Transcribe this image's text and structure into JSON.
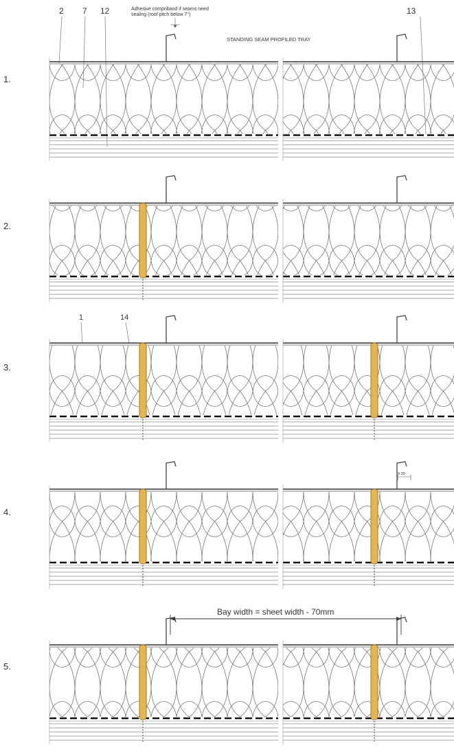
{
  "header": {
    "num_2": "2",
    "num_7": "7",
    "num_12": "12",
    "num_13": "13",
    "adhesive_note_line1": "Adhesive compriband if seams need",
    "adhesive_note_line2": "sealing (roof pitch below 7°)",
    "tray_label": "STANDING SEAM PROFILED TRAY"
  },
  "steps": [
    {
      "label": "1."
    },
    {
      "label": "2."
    },
    {
      "label": "3.",
      "callouts": [
        "1",
        "14"
      ]
    },
    {
      "label": "4.",
      "dim_label": "9.39"
    },
    {
      "label": "5.",
      "bay_label": "Bay width = sheet width - 70mm"
    }
  ],
  "colors": {
    "line": "#555555",
    "insulation": "#6f6f6f",
    "fixing": "#e8b54c",
    "fixing_stroke": "#9c7a2e"
  }
}
